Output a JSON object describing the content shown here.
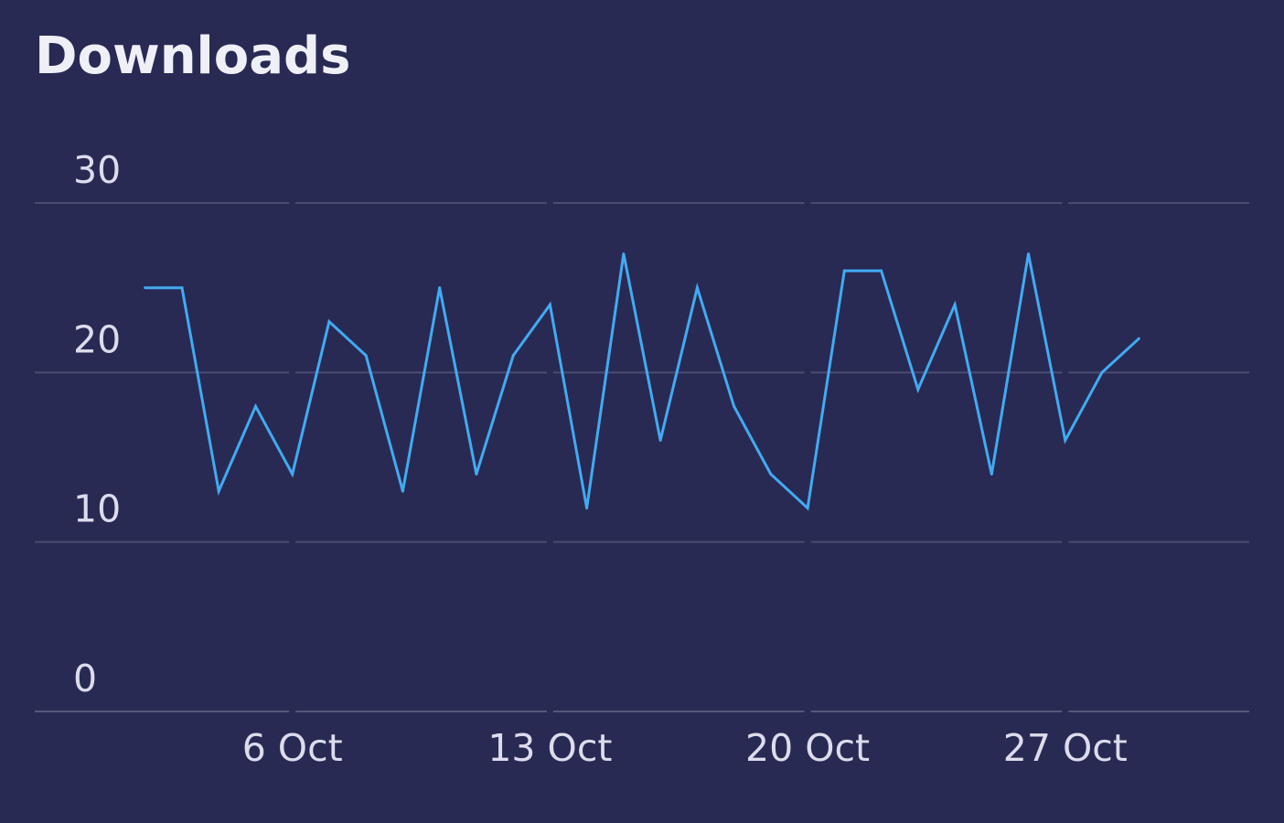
{
  "chart_data": {
    "type": "line",
    "title": "Downloads",
    "xlabel": "",
    "ylabel": "",
    "ylim": [
      0,
      30
    ],
    "yticks": [
      0,
      10,
      20,
      30
    ],
    "xlim": [
      "2025-09-29",
      "2025-11-01"
    ],
    "xticks": [
      {
        "date": "2025-10-06",
        "label": "6 Oct"
      },
      {
        "date": "2025-10-13",
        "label": "13 Oct"
      },
      {
        "date": "2025-10-20",
        "label": "20 Oct"
      },
      {
        "date": "2025-10-27",
        "label": "27 Oct"
      }
    ],
    "grid": true,
    "legend": "none",
    "series": [
      {
        "color": "#42aaf2",
        "x": [
          "2025-10-02",
          "2025-10-03",
          "2025-10-04",
          "2025-10-05",
          "2025-10-06",
          "2025-10-07",
          "2025-10-08",
          "2025-10-09",
          "2025-10-10",
          "2025-10-11",
          "2025-10-12",
          "2025-10-13",
          "2025-10-14",
          "2025-10-15",
          "2025-10-16",
          "2025-10-17",
          "2025-10-18",
          "2025-10-19",
          "2025-10-20",
          "2025-10-21",
          "2025-10-22",
          "2025-10-23",
          "2025-10-24",
          "2025-10-25",
          "2025-10-26",
          "2025-10-27",
          "2025-10-28",
          "2025-10-29"
        ],
        "values": [
          25,
          25,
          13,
          18,
          14,
          23,
          21,
          13,
          25,
          14,
          21,
          24,
          12,
          27,
          16,
          25,
          18,
          14,
          12,
          26,
          26,
          19,
          24,
          14,
          27,
          16,
          20,
          22
        ]
      }
    ]
  }
}
